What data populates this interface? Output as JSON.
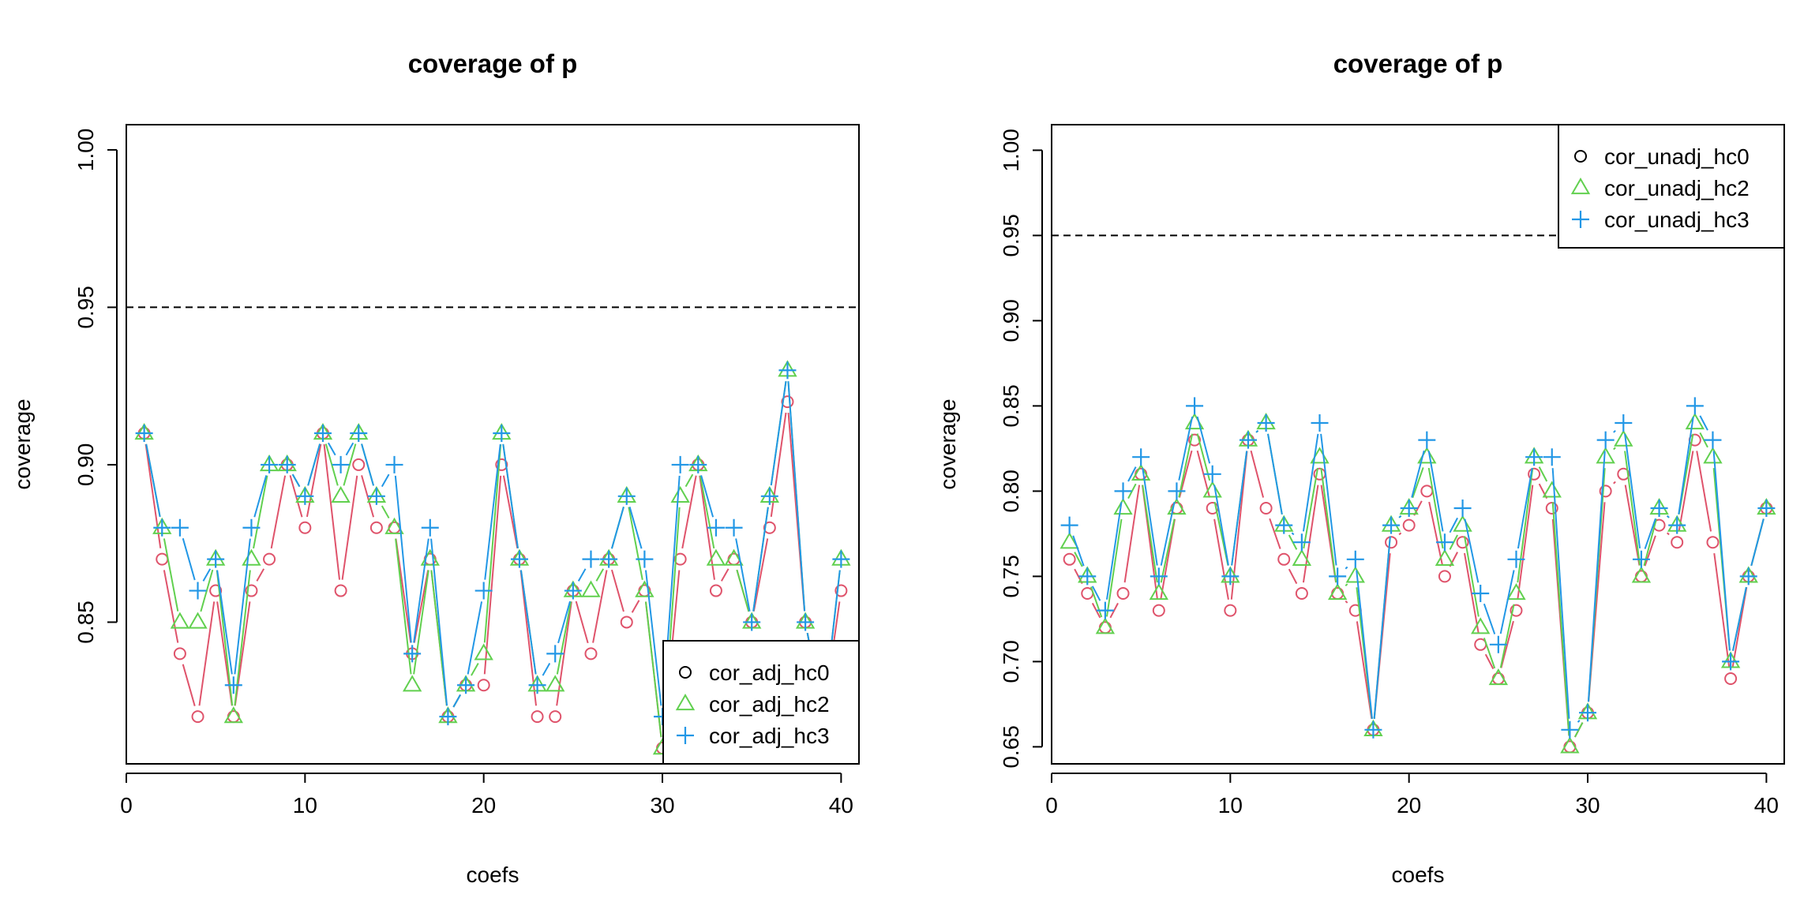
{
  "chart_data": [
    {
      "type": "line",
      "title": "coverage of p",
      "xlabel": "coefs",
      "ylabel": "coverage",
      "xlim": [
        0.0,
        41.0
      ],
      "ylim": [
        0.805,
        1.008
      ],
      "xticks": [
        0,
        10,
        20,
        30,
        40
      ],
      "xtick_labels": [
        "0",
        "10",
        "20",
        "30",
        "40"
      ],
      "yticks": [
        0.85,
        0.9,
        0.95,
        1.0
      ],
      "ytick_labels": [
        "0.85",
        "0.90",
        "0.95",
        "1.00"
      ],
      "reference_line": 0.95,
      "legend_position": "bottom-right",
      "x": [
        1,
        2,
        3,
        4,
        5,
        6,
        7,
        8,
        9,
        10,
        11,
        12,
        13,
        14,
        15,
        16,
        17,
        18,
        19,
        20,
        21,
        22,
        23,
        24,
        25,
        26,
        27,
        28,
        29,
        30,
        31,
        32,
        33,
        34,
        35,
        36,
        37,
        38,
        39,
        40
      ],
      "series": [
        {
          "name": "cor_adj_hc0",
          "marker": "circle",
          "color": "#DF536B",
          "values": [
            0.91,
            0.87,
            0.84,
            0.82,
            0.86,
            0.82,
            0.86,
            0.87,
            0.9,
            0.88,
            0.91,
            0.86,
            0.9,
            0.88,
            0.88,
            0.84,
            0.87,
            0.82,
            0.83,
            0.83,
            0.9,
            0.87,
            0.82,
            0.82,
            0.86,
            0.84,
            0.87,
            0.85,
            0.86,
            0.81,
            0.87,
            0.9,
            0.86,
            0.87,
            0.85,
            0.88,
            0.92,
            0.85,
            0.82,
            0.86
          ]
        },
        {
          "name": "cor_adj_hc2",
          "marker": "triangle",
          "color": "#61D04F",
          "values": [
            0.91,
            0.88,
            0.85,
            0.85,
            0.87,
            0.82,
            0.87,
            0.9,
            0.9,
            0.89,
            0.91,
            0.89,
            0.91,
            0.89,
            0.88,
            0.83,
            0.87,
            0.82,
            0.83,
            0.84,
            0.91,
            0.87,
            0.83,
            0.83,
            0.86,
            0.86,
            0.87,
            0.89,
            0.86,
            0.81,
            0.89,
            0.9,
            0.87,
            0.87,
            0.85,
            0.89,
            0.93,
            0.85,
            0.82,
            0.87
          ]
        },
        {
          "name": "cor_adj_hc3",
          "marker": "plus",
          "color": "#2297E6",
          "values": [
            0.91,
            0.88,
            0.88,
            0.86,
            0.87,
            0.83,
            0.88,
            0.9,
            0.9,
            0.89,
            0.91,
            0.9,
            0.91,
            0.89,
            0.9,
            0.84,
            0.88,
            0.82,
            0.83,
            0.86,
            0.91,
            0.87,
            0.83,
            0.84,
            0.86,
            0.87,
            0.87,
            0.89,
            0.87,
            0.82,
            0.9,
            0.9,
            0.88,
            0.88,
            0.85,
            0.89,
            0.93,
            0.85,
            0.82,
            0.87
          ]
        }
      ]
    },
    {
      "type": "line",
      "title": "coverage of p",
      "xlabel": "coefs",
      "ylabel": "coverage",
      "xlim": [
        0.0,
        41.0
      ],
      "ylim": [
        0.64,
        1.015
      ],
      "xticks": [
        0,
        10,
        20,
        30,
        40
      ],
      "xtick_labels": [
        "0",
        "10",
        "20",
        "30",
        "40"
      ],
      "yticks": [
        0.65,
        0.7,
        0.75,
        0.8,
        0.85,
        0.9,
        0.95,
        1.0
      ],
      "ytick_labels": [
        "0.65",
        "0.70",
        "0.75",
        "0.80",
        "0.85",
        "0.90",
        "0.95",
        "1.00"
      ],
      "reference_line": 0.95,
      "legend_position": "top-right",
      "x": [
        1,
        2,
        3,
        4,
        5,
        6,
        7,
        8,
        9,
        10,
        11,
        12,
        13,
        14,
        15,
        16,
        17,
        18,
        19,
        20,
        21,
        22,
        23,
        24,
        25,
        26,
        27,
        28,
        29,
        30,
        31,
        32,
        33,
        34,
        35,
        36,
        37,
        38,
        39,
        40
      ],
      "series": [
        {
          "name": "cor_unadj_hc0",
          "marker": "circle",
          "color": "#DF536B",
          "values": [
            0.76,
            0.74,
            0.72,
            0.74,
            0.81,
            0.73,
            0.79,
            0.83,
            0.79,
            0.73,
            0.83,
            0.79,
            0.76,
            0.74,
            0.81,
            0.74,
            0.73,
            0.66,
            0.77,
            0.78,
            0.8,
            0.75,
            0.77,
            0.71,
            0.69,
            0.73,
            0.81,
            0.79,
            0.65,
            0.67,
            0.8,
            0.81,
            0.75,
            0.78,
            0.77,
            0.83,
            0.77,
            0.69,
            0.75,
            0.79
          ]
        },
        {
          "name": "cor_unadj_hc2",
          "marker": "triangle",
          "color": "#61D04F",
          "values": [
            0.77,
            0.75,
            0.72,
            0.79,
            0.81,
            0.74,
            0.79,
            0.84,
            0.8,
            0.75,
            0.83,
            0.84,
            0.78,
            0.76,
            0.82,
            0.74,
            0.75,
            0.66,
            0.78,
            0.79,
            0.82,
            0.76,
            0.78,
            0.72,
            0.69,
            0.74,
            0.82,
            0.8,
            0.65,
            0.67,
            0.82,
            0.83,
            0.75,
            0.79,
            0.78,
            0.84,
            0.82,
            0.7,
            0.75,
            0.79
          ]
        },
        {
          "name": "cor_unadj_hc3",
          "marker": "plus",
          "color": "#2297E6",
          "values": [
            0.78,
            0.75,
            0.73,
            0.8,
            0.82,
            0.75,
            0.8,
            0.85,
            0.81,
            0.75,
            0.83,
            0.84,
            0.78,
            0.77,
            0.84,
            0.75,
            0.76,
            0.66,
            0.78,
            0.79,
            0.83,
            0.77,
            0.79,
            0.74,
            0.71,
            0.76,
            0.82,
            0.82,
            0.66,
            0.67,
            0.83,
            0.84,
            0.76,
            0.79,
            0.78,
            0.85,
            0.83,
            0.7,
            0.75,
            0.79
          ]
        }
      ]
    }
  ]
}
